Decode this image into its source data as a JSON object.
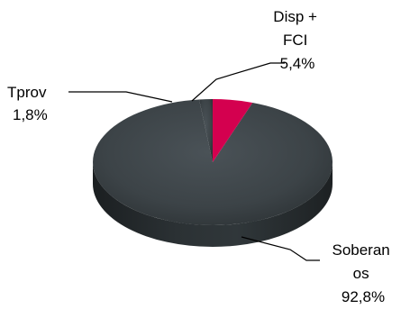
{
  "chart_data": {
    "type": "pie",
    "style": "3d",
    "slices": [
      {
        "key": "soberanos",
        "label_lines": [
          "Soberan",
          "os"
        ],
        "value_text": "92,8%",
        "value": 92.8,
        "color": "#3c4347"
      },
      {
        "key": "tprov",
        "label_lines": [
          "Tprov"
        ],
        "value_text": "1,8%",
        "value": 1.8,
        "color": "#3c4347"
      },
      {
        "key": "disp_fci",
        "label_lines": [
          "Disp +",
          "FCI"
        ],
        "value_text": "5,4%",
        "value": 5.4,
        "color": "#d4004f"
      }
    ],
    "legend": "none"
  }
}
